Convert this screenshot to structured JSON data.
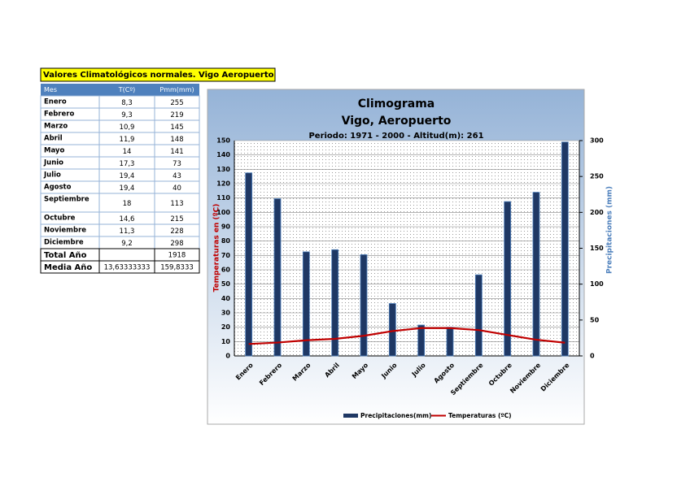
{
  "table": {
    "title": "Valores Climatológicos normales. Vigo Aeropuerto",
    "header": [
      "Mes",
      "T(Cº)",
      "Pmm(mm)"
    ],
    "rows": [
      [
        "Enero",
        "8,3",
        "255"
      ],
      [
        "Febrero",
        "9,3",
        "219"
      ],
      [
        "Marzo",
        "10,9",
        "145"
      ],
      [
        "Abril",
        "11,9",
        "148"
      ],
      [
        "Mayo",
        "14",
        "141"
      ],
      [
        "Junio",
        "17,3",
        "73"
      ],
      [
        "Julio",
        "19,4",
        "43"
      ],
      [
        "Agosto",
        "19,4",
        "40"
      ],
      [
        "Septiembre",
        "18",
        "113"
      ],
      [
        "Octubre",
        "14,6",
        "215"
      ],
      [
        "Noviembre",
        "11,3",
        "228"
      ],
      [
        "Diciembre",
        "9,2",
        "298"
      ]
    ],
    "total": {
      "label": "Total Año",
      "precip": "1918"
    },
    "mean": {
      "label": "Media Año",
      "temp": "13,63333333",
      "precip": "159,8333"
    }
  },
  "chart_data": {
    "type": "bar-line",
    "title": "Climograma",
    "subtitle": "Vigo, Aeropuerto",
    "note": "Periodo: 1971 - 2000 - Altitud(m): 261",
    "y_label": "Temperaturas en (ºC)",
    "y2_label": "Precipitaciones (mm)",
    "categories": [
      "Enero",
      "Febrero",
      "Marzo",
      "Abril",
      "Mayo",
      "Junio",
      "Julio",
      "Agosto",
      "Septiembre",
      "Octubre",
      "Noviembre",
      "Diciembre"
    ],
    "series": [
      {
        "name": "Precipitaciones(mm)",
        "type": "bar",
        "axis": "y2",
        "color": "#1f3864",
        "values": [
          255,
          219,
          145,
          148,
          141,
          73,
          43,
          40,
          113,
          215,
          228,
          298
        ]
      },
      {
        "name": "Temperaturas (ºC)",
        "type": "line",
        "axis": "y",
        "color": "#c00000",
        "values": [
          8.3,
          9.3,
          10.9,
          11.9,
          14,
          17.3,
          19.4,
          19.4,
          18,
          14.6,
          11.3,
          9.2
        ]
      }
    ],
    "ylim": [
      0,
      150
    ],
    "yticks": [
      0,
      10,
      20,
      30,
      40,
      50,
      60,
      70,
      80,
      90,
      100,
      110,
      120,
      130,
      140,
      150
    ],
    "y2lim": [
      0,
      300
    ],
    "y2ticks": [
      0,
      50,
      100,
      150,
      200,
      250,
      300
    ],
    "grid": true,
    "legend": "bottom"
  }
}
